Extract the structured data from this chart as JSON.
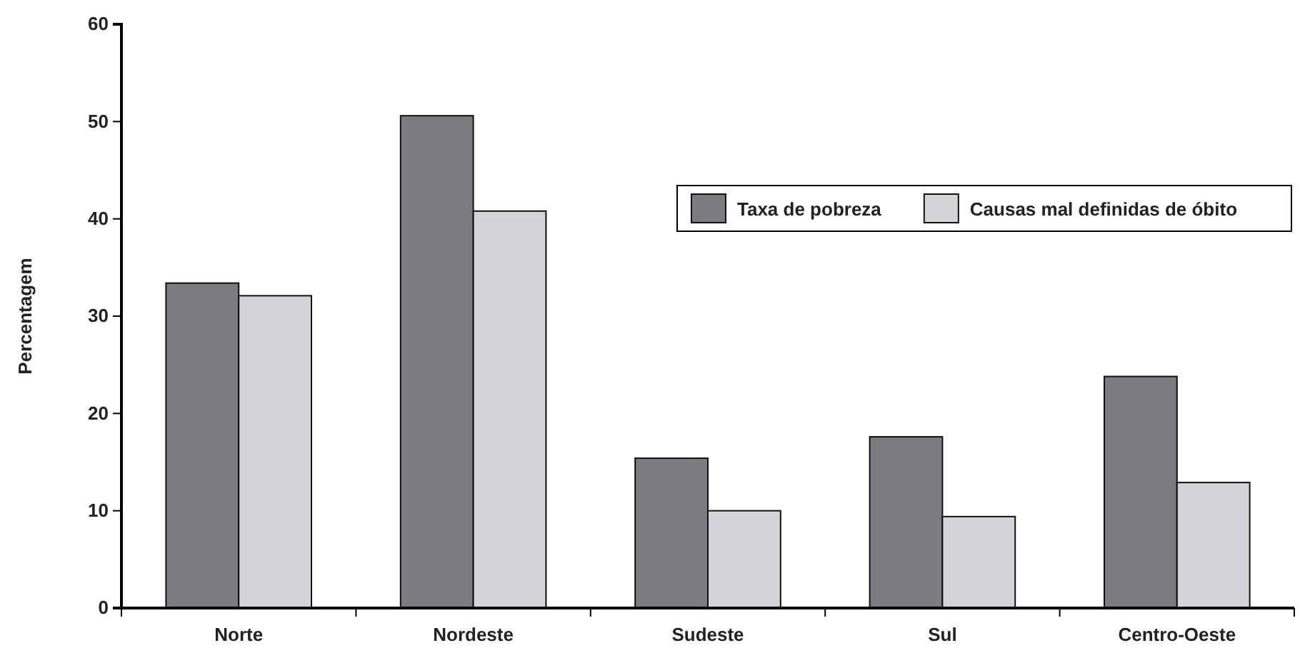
{
  "chart_data": {
    "type": "bar",
    "ylabel": "Percentagem",
    "categories": [
      "Norte",
      "Nordeste",
      "Sudeste",
      "Sul",
      "Centro-Oeste"
    ],
    "series": [
      {
        "name": "Taxa de pobreza",
        "color": "#7b7b80",
        "values": [
          33.4,
          50.6,
          15.4,
          17.6,
          23.8
        ]
      },
      {
        "name": "Causas mal definidas de óbito",
        "color": "#d5d5d7",
        "values": [
          32.1,
          40.8,
          10.0,
          9.4,
          12.9
        ]
      }
    ],
    "ylim": [
      0,
      60
    ],
    "yticks": [
      0,
      10,
      20,
      30,
      40,
      50,
      60
    ],
    "grid": false,
    "legend": "top right"
  }
}
